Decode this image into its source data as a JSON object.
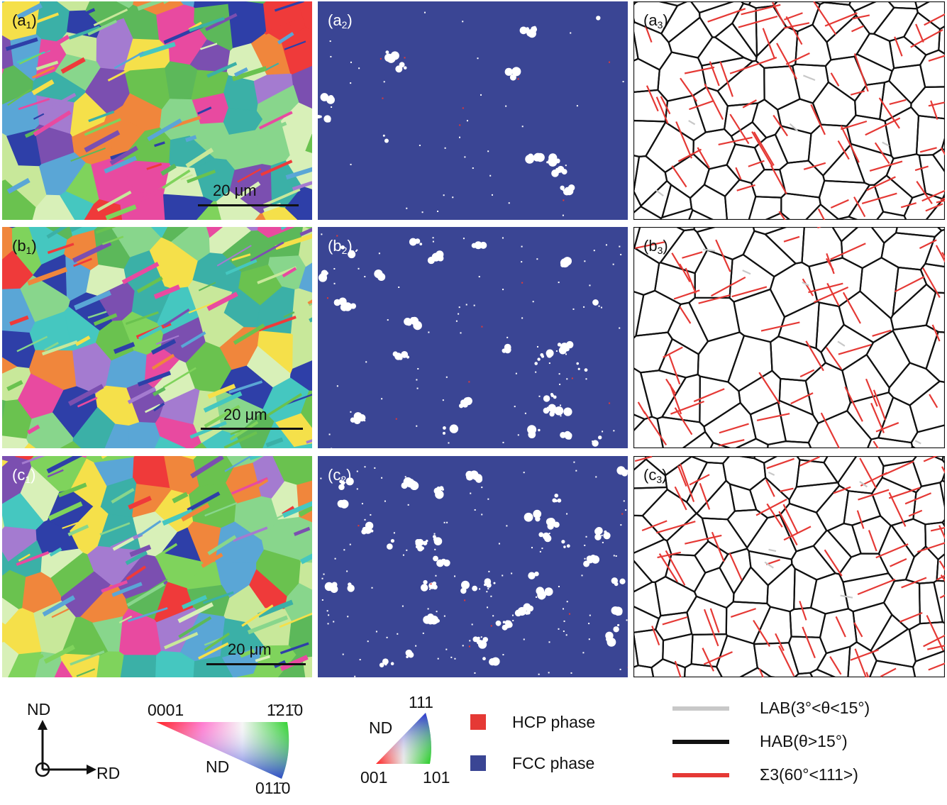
{
  "panels": [
    {
      "id": "a1",
      "letter": "a",
      "sub": "1",
      "type": "ipf",
      "scalebar": "20 μm"
    },
    {
      "id": "a2",
      "letter": "a",
      "sub": "2",
      "type": "phase"
    },
    {
      "id": "a3",
      "letter": "a",
      "sub": "3",
      "type": "boundary"
    },
    {
      "id": "b1",
      "letter": "b",
      "sub": "1",
      "type": "ipf",
      "scalebar": "20 μm"
    },
    {
      "id": "b2",
      "letter": "b",
      "sub": "2",
      "type": "phase"
    },
    {
      "id": "b3",
      "letter": "b",
      "sub": "3",
      "type": "boundary"
    },
    {
      "id": "c1",
      "letter": "c",
      "sub": "1",
      "type": "ipf",
      "scalebar": "20 μm"
    },
    {
      "id": "c2",
      "letter": "c",
      "sub": "2",
      "type": "phase"
    },
    {
      "id": "c3",
      "letter": "c",
      "sub": "3",
      "type": "boundary"
    }
  ],
  "legend": {
    "axes": {
      "nd": "ND",
      "rd": "RD"
    },
    "hcp_triangle": {
      "top_left": "0001",
      "top_right": "1̄21̄0",
      "bottom": "011̄0",
      "center": "ND"
    },
    "fcc_triangle": {
      "top": "111",
      "bottom_left": "001",
      "bottom_right": "101",
      "left": "ND"
    },
    "phases": [
      {
        "label": "HCP phase",
        "color": "#e53935"
      },
      {
        "label": "FCC phase",
        "color": "#3a4594"
      }
    ],
    "boundaries": [
      {
        "label": "LAB(3°<θ<15°)",
        "color": "#c8c8c8"
      },
      {
        "label": "HAB(θ>15°)",
        "color": "#111111"
      },
      {
        "label": "Σ3(60°<111>)",
        "color": "#e53935"
      }
    ]
  },
  "colors": {
    "fcc_blue": "#3a4594",
    "hcp_red": "#e53935",
    "ipf_palette": [
      "#6ac24f",
      "#5cb85a",
      "#7fd35c",
      "#3bb0a7",
      "#5aa6d6",
      "#2e3fa8",
      "#7b4fb0",
      "#a47bd0",
      "#ef3a3a",
      "#f0863c",
      "#e84aa0",
      "#c8e89a",
      "#d8f0b8",
      "#45c7c0",
      "#f5e04a",
      "#88d68c"
    ]
  }
}
